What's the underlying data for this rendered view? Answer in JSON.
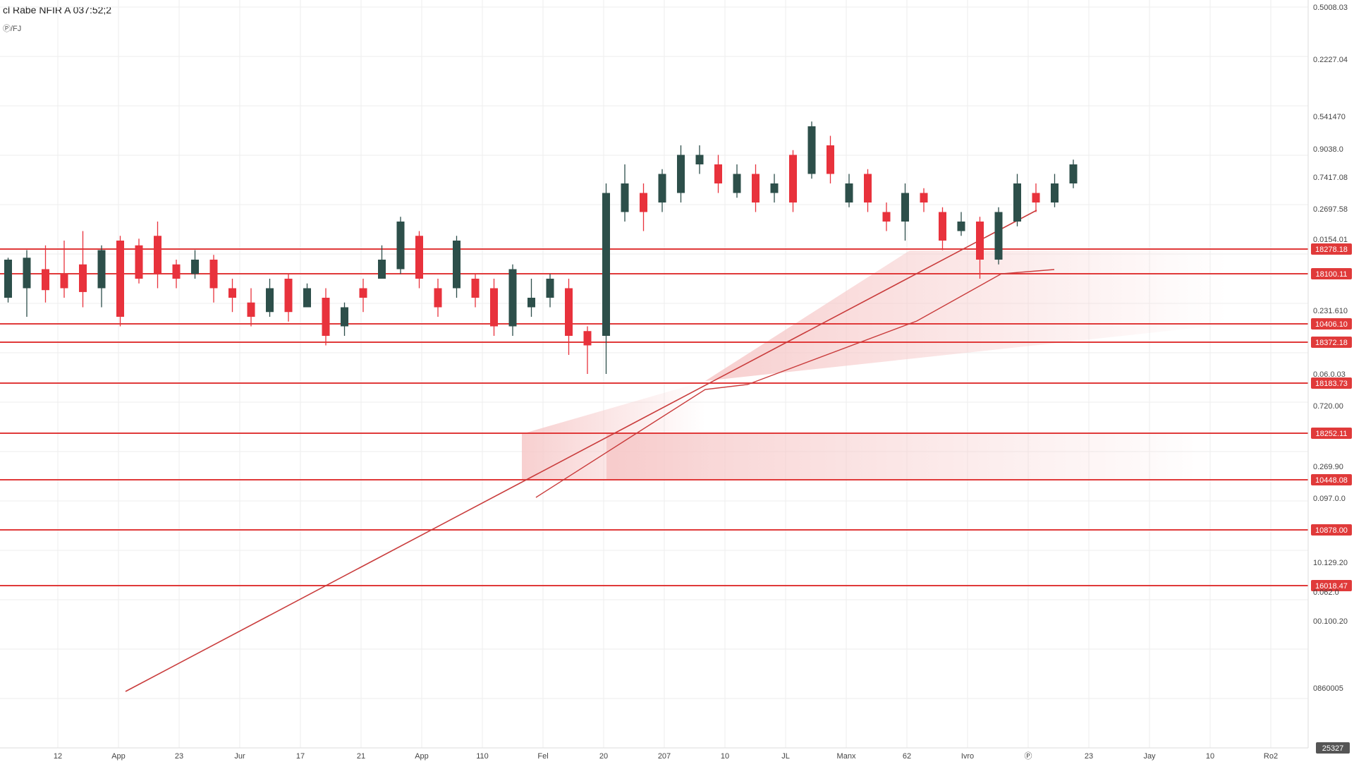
{
  "header": {
    "symbol_line": "cl Rabe NFIR A  037:52;2",
    "sub_line": "Ⓟ/FJ"
  },
  "colors": {
    "up": "#2d4f4a",
    "down": "#e8323c",
    "level": "#e03a3a",
    "trend": "#c93c3c",
    "zone": "#f6c7c7",
    "axis_text": "#444444",
    "grid": "#eeeeee"
  },
  "chart_data": {
    "type": "candlestick",
    "title": "",
    "y_axis": {
      "side": "right",
      "tick_labels": [
        "0.5008.03",
        "0.2227.04",
        "0.541470",
        "0.9038.0",
        "0.7417.08",
        "0.2697.58",
        "0.0154.01",
        "0.231.610",
        "0.06.0.03",
        "0.720.00",
        "0.269.90",
        "0.097.0.0",
        "10.129.20",
        "0.062.0",
        "00.100.20",
        "0860005"
      ],
      "last_label": "25327"
    },
    "x_axis": {
      "tick_labels": [
        "12",
        "App",
        "23",
        "Jur",
        "17",
        "21",
        "App",
        "110",
        "Fel",
        "20",
        "207",
        "10",
        "JL",
        "Manx",
        "62",
        "Ivro",
        "Ⓟ",
        "23",
        "Jay",
        "10",
        "Ro2"
      ]
    },
    "levels": [
      {
        "label": "18278.18",
        "price": 18278.18
      },
      {
        "label": "18100.11",
        "price": 18100.11
      },
      {
        "label": "10406.10",
        "price": 10406.1
      },
      {
        "label": "18372.18",
        "price": 18372.18
      },
      {
        "label": "18183.73",
        "price": 18183.73
      },
      {
        "label": "18252.11",
        "price": 18252.11
      },
      {
        "label": "10448.08",
        "price": 10448.08
      },
      {
        "label": "10878.00",
        "price": 10878.0
      },
      {
        "label": "16018.47",
        "price": 16018.47
      }
    ],
    "candles": [
      [
        0,
        680,
        720,
        675,
        722
      ],
      [
        1,
        690,
        722,
        660,
        730
      ],
      [
        2,
        710,
        688,
        675,
        735
      ],
      [
        3,
        705,
        690,
        680,
        740
      ],
      [
        4,
        715,
        686,
        670,
        750
      ],
      [
        5,
        690,
        730,
        670,
        735
      ],
      [
        6,
        740,
        660,
        650,
        745
      ],
      [
        7,
        735,
        700,
        695,
        742
      ],
      [
        8,
        745,
        705,
        690,
        760
      ],
      [
        9,
        715,
        700,
        690,
        720
      ],
      [
        10,
        705,
        720,
        700,
        730
      ],
      [
        11,
        720,
        690,
        675,
        725
      ],
      [
        12,
        690,
        680,
        665,
        700
      ],
      [
        13,
        675,
        660,
        650,
        690
      ],
      [
        14,
        665,
        690,
        660,
        700
      ],
      [
        15,
        700,
        665,
        655,
        705
      ],
      [
        16,
        670,
        690,
        670,
        695
      ],
      [
        17,
        680,
        640,
        630,
        690
      ],
      [
        18,
        650,
        670,
        640,
        675
      ],
      [
        19,
        690,
        680,
        665,
        700
      ],
      [
        20,
        700,
        720,
        700,
        735
      ],
      [
        21,
        710,
        760,
        705,
        765
      ],
      [
        22,
        745,
        700,
        690,
        750
      ],
      [
        23,
        690,
        670,
        660,
        700
      ],
      [
        24,
        690,
        740,
        680,
        745
      ],
      [
        25,
        700,
        680,
        670,
        705
      ],
      [
        26,
        690,
        650,
        640,
        700
      ],
      [
        27,
        650,
        710,
        640,
        715
      ],
      [
        28,
        670,
        680,
        660,
        700
      ],
      [
        29,
        680,
        700,
        670,
        705
      ],
      [
        30,
        690,
        640,
        620,
        700
      ],
      [
        31,
        645,
        630,
        600,
        650
      ],
      [
        32,
        640,
        790,
        600,
        800
      ],
      [
        33,
        770,
        800,
        760,
        820
      ],
      [
        34,
        790,
        770,
        750,
        800
      ],
      [
        35,
        780,
        810,
        770,
        815
      ],
      [
        36,
        790,
        830,
        780,
        840
      ],
      [
        37,
        820,
        830,
        810,
        840
      ],
      [
        38,
        820,
        800,
        790,
        830
      ],
      [
        39,
        790,
        810,
        785,
        820
      ],
      [
        40,
        810,
        780,
        770,
        820
      ],
      [
        41,
        790,
        800,
        780,
        810
      ],
      [
        42,
        830,
        780,
        770,
        835
      ],
      [
        43,
        810,
        860,
        805,
        865
      ],
      [
        44,
        840,
        810,
        800,
        850
      ],
      [
        45,
        780,
        800,
        775,
        810
      ],
      [
        46,
        810,
        780,
        770,
        815
      ],
      [
        47,
        770,
        760,
        750,
        780
      ],
      [
        48,
        760,
        790,
        740,
        800
      ],
      [
        49,
        790,
        780,
        770,
        795
      ],
      [
        50,
        770,
        740,
        730,
        775
      ],
      [
        51,
        750,
        760,
        745,
        770
      ],
      [
        52,
        760,
        720,
        700,
        765
      ],
      [
        53,
        720,
        770,
        715,
        775
      ],
      [
        54,
        760,
        800,
        755,
        810
      ],
      [
        55,
        790,
        780,
        770,
        800
      ],
      [
        56,
        780,
        800,
        775,
        810
      ],
      [
        57,
        800,
        820,
        795,
        825
      ]
    ]
  }
}
